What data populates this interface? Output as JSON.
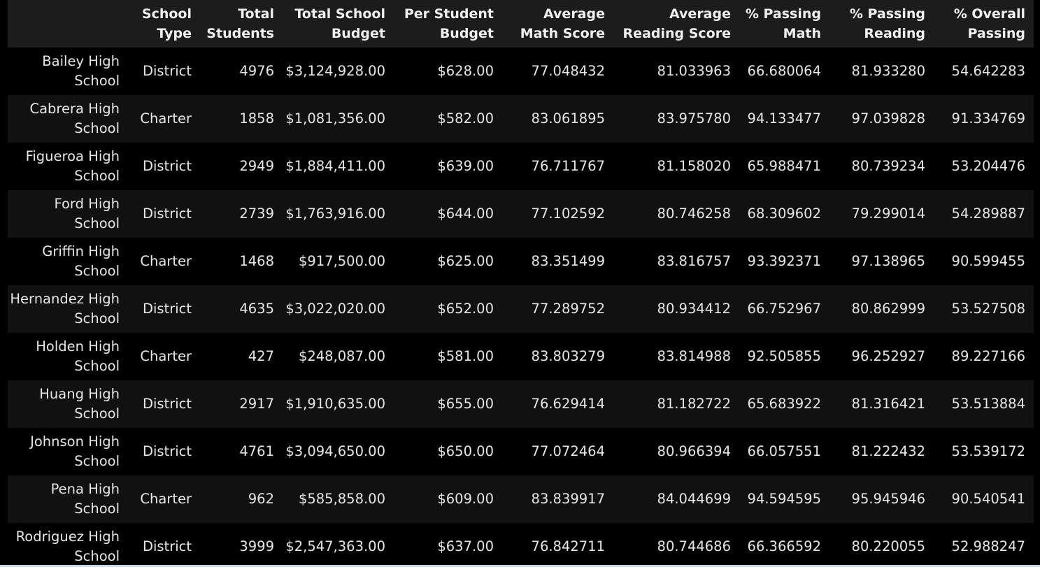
{
  "columns": [
    "",
    "School Type",
    "Total Students",
    "Total School Budget",
    "Per Student Budget",
    "Average Math Score",
    "Average Reading Score",
    "% Passing Math",
    "% Passing Reading",
    "% Overall Passing"
  ],
  "rows": [
    [
      "Bailey High School",
      "District",
      "4976",
      "$3,124,928.00",
      "$628.00",
      "77.048432",
      "81.033963",
      "66.680064",
      "81.933280",
      "54.642283"
    ],
    [
      "Cabrera High School",
      "Charter",
      "1858",
      "$1,081,356.00",
      "$582.00",
      "83.061895",
      "83.975780",
      "94.133477",
      "97.039828",
      "91.334769"
    ],
    [
      "Figueroa High School",
      "District",
      "2949",
      "$1,884,411.00",
      "$639.00",
      "76.711767",
      "81.158020",
      "65.988471",
      "80.739234",
      "53.204476"
    ],
    [
      "Ford High School",
      "District",
      "2739",
      "$1,763,916.00",
      "$644.00",
      "77.102592",
      "80.746258",
      "68.309602",
      "79.299014",
      "54.289887"
    ],
    [
      "Griffin High School",
      "Charter",
      "1468",
      "$917,500.00",
      "$625.00",
      "83.351499",
      "83.816757",
      "93.392371",
      "97.138965",
      "90.599455"
    ],
    [
      "Hernandez High School",
      "District",
      "4635",
      "$3,022,020.00",
      "$652.00",
      "77.289752",
      "80.934412",
      "66.752967",
      "80.862999",
      "53.527508"
    ],
    [
      "Holden High School",
      "Charter",
      "427",
      "$248,087.00",
      "$581.00",
      "83.803279",
      "83.814988",
      "92.505855",
      "96.252927",
      "89.227166"
    ],
    [
      "Huang High School",
      "District",
      "2917",
      "$1,910,635.00",
      "$655.00",
      "76.629414",
      "81.182722",
      "65.683922",
      "81.316421",
      "53.513884"
    ],
    [
      "Johnson High School",
      "District",
      "4761",
      "$3,094,650.00",
      "$650.00",
      "77.072464",
      "80.966394",
      "66.057551",
      "81.222432",
      "53.539172"
    ],
    [
      "Pena High School",
      "Charter",
      "962",
      "$585,858.00",
      "$609.00",
      "83.839917",
      "84.044699",
      "94.594595",
      "95.945946",
      "90.540541"
    ],
    [
      "Rodriguez High School",
      "District",
      "3999",
      "$2,547,363.00",
      "$637.00",
      "76.842711",
      "80.744686",
      "66.366592",
      "80.220055",
      "52.988247"
    ]
  ]
}
